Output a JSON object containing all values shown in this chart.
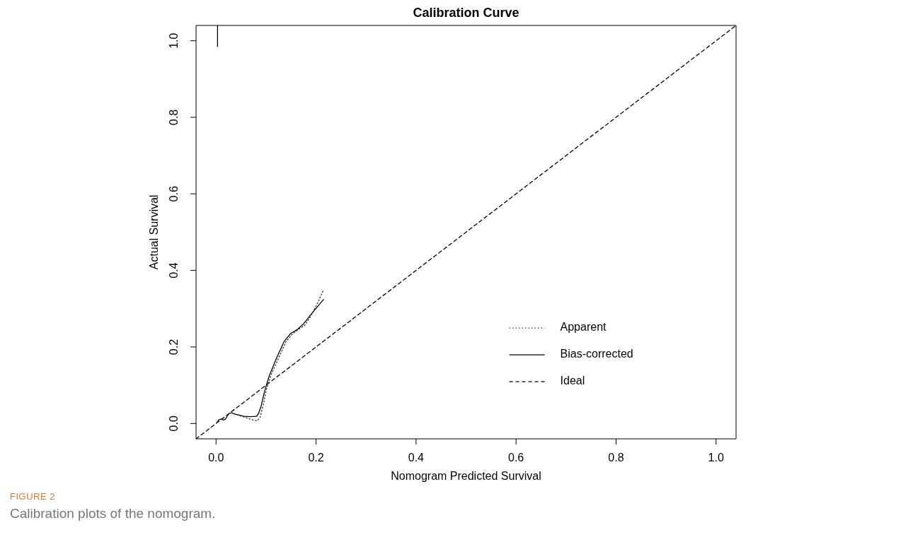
{
  "chart_data": {
    "type": "line",
    "title": "Calibration Curve",
    "xlabel": "Nomogram Predicted Survival",
    "ylabel": "Actual Survival",
    "xlim": [
      -0.04,
      1.04
    ],
    "ylim": [
      -0.04,
      1.04
    ],
    "xticks": [
      {
        "value": 0,
        "label": "0.0"
      },
      0.2,
      0.4,
      0.6,
      0.8,
      {
        "value": 1,
        "label": "1.0"
      }
    ],
    "yticks": [
      {
        "value": 0,
        "label": "0.0"
      },
      0.2,
      0.4,
      0.6,
      0.8,
      {
        "value": 1,
        "label": "1.0"
      }
    ],
    "grid": false,
    "legend": "bottom right",
    "marker": "none",
    "series": [
      {
        "name": "Apparent",
        "color": "#333333",
        "line_style": "dotted",
        "x": [
          0.002,
          0.006,
          0.011,
          0.015,
          0.019,
          0.023,
          0.026,
          0.031,
          0.042,
          0.058,
          0.072,
          0.082,
          0.088,
          0.095,
          0.101,
          0.111,
          0.124,
          0.14,
          0.152,
          0.165,
          0.177,
          0.19,
          0.204,
          0.215
        ],
        "values": [
          0.003,
          0.01,
          0.012,
          0.009,
          0.012,
          0.021,
          0.026,
          0.028,
          0.023,
          0.016,
          0.01,
          0.007,
          0.016,
          0.052,
          0.091,
          0.13,
          0.168,
          0.214,
          0.233,
          0.246,
          0.256,
          0.282,
          0.317,
          0.35
        ]
      },
      {
        "name": "Bias-corrected",
        "color": "#000000",
        "line_style": "solid",
        "x": [
          0.003,
          0.003,
          null,
          0.002,
          0.006,
          0.011,
          0.015,
          0.019,
          0.023,
          0.026,
          0.031,
          0.037,
          0.056,
          0.069,
          0.081,
          0.085,
          0.09,
          0.097,
          0.106,
          0.12,
          0.136,
          0.149,
          0.163,
          0.174,
          0.188,
          0.202,
          0.215
        ],
        "values": [
          0.985,
          1.04,
          null,
          0.003,
          0.01,
          0.012,
          0.009,
          0.012,
          0.021,
          0.026,
          0.028,
          0.025,
          0.019,
          0.018,
          0.019,
          0.026,
          0.045,
          0.084,
          0.123,
          0.168,
          0.214,
          0.235,
          0.246,
          0.259,
          0.282,
          0.304,
          0.324
        ]
      },
      {
        "name": "Ideal",
        "color": "#000000",
        "line_style": "dashed",
        "x": [
          -0.04,
          1.04
        ],
        "values": [
          -0.04,
          1.04
        ]
      }
    ],
    "annotations": [
      "FIGURE 2",
      "Calibration plots of the nomogram."
    ]
  }
}
